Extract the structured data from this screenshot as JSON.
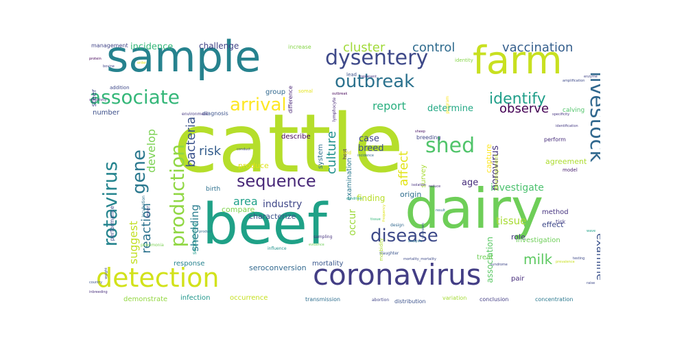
{
  "words": [
    {
      "text": "cattle",
      "color": "#b5de2b"
    },
    {
      "text": "dairy",
      "color": "#6ece58"
    },
    {
      "text": "beef",
      "color": "#1fa187"
    },
    {
      "text": "sample",
      "color": "#26828e"
    },
    {
      "text": "farm",
      "color": "#c8e020"
    },
    {
      "text": "coronavirus",
      "color": "#433e85"
    },
    {
      "text": "detection",
      "color": "#d2e21b"
    },
    {
      "text": "dysentery",
      "color": "#3e4989"
    },
    {
      "text": "outbreak",
      "color": "#2c728e"
    },
    {
      "text": "associate",
      "color": "#35b779"
    },
    {
      "text": "livestock",
      "color": "#31688e"
    },
    {
      "text": "production",
      "color": "#90d743"
    },
    {
      "text": "rotavirus",
      "color": "#25848e"
    },
    {
      "text": "disease",
      "color": "#3e4a89"
    },
    {
      "text": "shed",
      "color": "#50c46a"
    },
    {
      "text": "arrival",
      "color": "#fde725"
    },
    {
      "text": "gene",
      "color": "#2a788e"
    },
    {
      "text": "sequence",
      "color": "#482878"
    },
    {
      "text": "identify",
      "color": "#1f9e89"
    },
    {
      "text": "cluster",
      "color": "#a0da39"
    },
    {
      "text": "control",
      "color": "#2f6b8e"
    },
    {
      "text": "vaccination",
      "color": "#355f8d"
    },
    {
      "text": "report",
      "color": "#29af7f"
    },
    {
      "text": "observe",
      "color": "#440154"
    },
    {
      "text": "milk",
      "color": "#5ec962"
    },
    {
      "text": "culture",
      "color": "#21918c"
    },
    {
      "text": "bacteria",
      "color": "#3b528b"
    },
    {
      "text": "develop",
      "color": "#7ad151"
    },
    {
      "text": "suggest",
      "color": "#c2df23"
    },
    {
      "text": "reaction",
      "color": "#2c728e"
    },
    {
      "text": "shedding",
      "color": "#287c8e"
    },
    {
      "text": "risk",
      "color": "#355e8d"
    },
    {
      "text": "area",
      "color": "#1fa088"
    },
    {
      "text": "industry",
      "color": "#3f4788"
    },
    {
      "text": "affect",
      "color": "#e2e418"
    },
    {
      "text": "examine",
      "color": "#3b528b"
    },
    {
      "text": "tissue",
      "color": "#a8db34"
    },
    {
      "text": "investigate",
      "color": "#4ac16d"
    },
    {
      "text": "norovirus",
      "color": "#46337e"
    },
    {
      "text": "occur",
      "color": "#9dd93b"
    },
    {
      "text": "determine",
      "color": "#22a884"
    },
    {
      "text": "case",
      "color": "#404688"
    },
    {
      "text": "breed",
      "color": "#3c4f8a"
    },
    {
      "text": "age",
      "color": "#472d7b"
    },
    {
      "text": "incidence",
      "color": "#35b779"
    },
    {
      "text": "challenge",
      "color": "#414487"
    },
    {
      "text": "management",
      "color": "#414487"
    },
    {
      "text": "increase",
      "color": "#86d549"
    },
    {
      "text": "finding",
      "color": "#b8de29"
    },
    {
      "text": "origin",
      "color": "#2e6e8e"
    },
    {
      "text": "response",
      "color": "#26828e"
    },
    {
      "text": "infection",
      "color": "#1f968b"
    },
    {
      "text": "occurrence",
      "color": "#c5e021"
    },
    {
      "text": "seroconversion",
      "color": "#31688e"
    },
    {
      "text": "characterize",
      "color": "#3b528b"
    },
    {
      "text": "compare",
      "color": "#7fd34e"
    },
    {
      "text": "produce",
      "color": "#dfe318"
    },
    {
      "text": "describe",
      "color": "#440154"
    },
    {
      "text": "system",
      "color": "#2d708e"
    },
    {
      "text": "examination",
      "color": "#2a788e"
    },
    {
      "text": "association",
      "color": "#5ac864"
    },
    {
      "text": "survey",
      "color": "#a8db34"
    },
    {
      "text": "group",
      "color": "#31688e"
    },
    {
      "text": "mortality",
      "color": "#39568c"
    },
    {
      "text": "treat",
      "color": "#70cf57"
    },
    {
      "text": "pair",
      "color": "#472d7b"
    },
    {
      "text": "role",
      "color": "#453781"
    },
    {
      "text": "method",
      "color": "#463480"
    },
    {
      "text": "effect",
      "color": "#3e4989"
    },
    {
      "text": "investigation",
      "color": "#6ece58"
    },
    {
      "text": "agreement",
      "color": "#addc30"
    },
    {
      "text": "number",
      "color": "#3c4f8a"
    },
    {
      "text": "steer",
      "color": "#3f4788"
    },
    {
      "text": "breeding",
      "color": "#404688"
    },
    {
      "text": "capture",
      "color": "#fde725"
    },
    {
      "text": "development",
      "color": "#b8de29"
    },
    {
      "text": "transmission",
      "color": "#2e6e8e"
    },
    {
      "text": "distribution",
      "color": "#3b528b"
    },
    {
      "text": "variation",
      "color": "#a5db36"
    },
    {
      "text": "conclusion",
      "color": "#433e85"
    },
    {
      "text": "concentration",
      "color": "#2a788e"
    },
    {
      "text": "demonstrate",
      "color": "#93d741"
    },
    {
      "text": "abortion",
      "color": "#414487"
    },
    {
      "text": "birth",
      "color": "#2d708e"
    },
    {
      "text": "sequencing",
      "color": "#1f9a8a"
    },
    {
      "text": "performance",
      "color": "#3e4a89"
    },
    {
      "text": "calving",
      "color": "#50c46a"
    },
    {
      "text": "perform",
      "color": "#472d7b"
    },
    {
      "text": "model",
      "color": "#481f70"
    },
    {
      "text": "sampling",
      "color": "#46327e"
    },
    {
      "text": "influence",
      "color": "#20928c"
    },
    {
      "text": "slaughter",
      "color": "#3a548c"
    },
    {
      "text": "design",
      "color": "#31688e"
    },
    {
      "text": "diagnosis",
      "color": "#3b528b"
    },
    {
      "text": "addition",
      "color": "#3e4989"
    },
    {
      "text": "environment",
      "color": "#453781"
    },
    {
      "text": "incubation",
      "color": "#2c728e"
    },
    {
      "text": "tick",
      "color": "#433e85"
    },
    {
      "text": "identity",
      "color": "#86d549"
    },
    {
      "text": "difference",
      "color": "#482576"
    },
    {
      "text": "lead",
      "color": "#3b528b"
    },
    {
      "text": "somal",
      "color": "#e5e419"
    },
    {
      "text": "lymphocyte",
      "color": "#482878"
    },
    {
      "text": "host",
      "color": "#48186a"
    },
    {
      "text": "field",
      "color": "#d8e219"
    },
    {
      "text": "morbidity",
      "color": "#addc30"
    },
    {
      "text": "isolation",
      "color": "#46307e"
    },
    {
      "text": "program",
      "color": "#fde725"
    },
    {
      "text": "protein",
      "color": "#450559"
    },
    {
      "text": "order",
      "color": "#dfe318"
    },
    {
      "text": "conduct",
      "color": "#3f4788"
    },
    {
      "text": "sheep",
      "color": "#471063"
    },
    {
      "text": "incidence",
      "color": "#31688e"
    },
    {
      "text": "outbreak",
      "color": "#46075a"
    },
    {
      "text": "mortality_mortality",
      "color": "#3e4a89"
    },
    {
      "text": "identification",
      "color": "#443983"
    },
    {
      "text": "amplification",
      "color": "#3e4a89"
    },
    {
      "text": "enzyme",
      "color": "#414487"
    },
    {
      "text": "product",
      "color": "#2e6e8e"
    },
    {
      "text": "condition",
      "color": "#20a486"
    },
    {
      "text": "fever",
      "color": "#3f4889"
    },
    {
      "text": "frequency",
      "color": "#dde318"
    },
    {
      "text": "inbreeding",
      "color": "#472d7b"
    },
    {
      "text": "weight",
      "color": "#3e4989"
    },
    {
      "text": "pneumonia",
      "color": "#7ad151"
    },
    {
      "text": "syndrome",
      "color": "#3f4788"
    },
    {
      "text": "prevalence",
      "color": "#c8e020"
    },
    {
      "text": "tissue",
      "color": "#35b779"
    },
    {
      "text": "result",
      "color": "#2c728e"
    },
    {
      "text": "testing",
      "color": "#3e4989"
    },
    {
      "text": "sensitivity",
      "color": "#46327e"
    },
    {
      "text": "specificity",
      "color": "#463480"
    },
    {
      "text": "represent",
      "color": "#46327e"
    },
    {
      "text": "bovine",
      "color": "#414487"
    },
    {
      "text": "country",
      "color": "#3b528b"
    },
    {
      "text": "raise",
      "color": "#3e4989"
    },
    {
      "text": "wave",
      "color": "#1fa187"
    },
    {
      "text": "unknown",
      "color": "#38588c"
    },
    {
      "text": "reduce",
      "color": "#472d7b"
    },
    {
      "text": "evidence",
      "color": "#6ece58"
    },
    {
      "text": "analysis",
      "color": "#2a788e"
    }
  ]
}
